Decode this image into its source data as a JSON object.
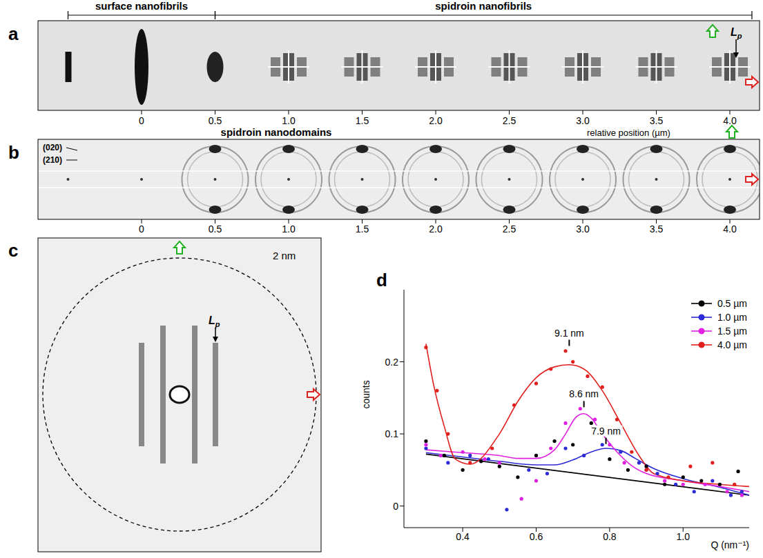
{
  "panels": {
    "a": {
      "letter": "a",
      "segments": [
        {
          "label": "surface nanofibrils",
          "from": -0.5,
          "to": 0.5
        },
        {
          "label": "spidroin nanofibrils",
          "from": 0.5,
          "to": 4.15
        }
      ],
      "frame_positions": [
        -0.5,
        0,
        0.5,
        1,
        1.5,
        2,
        2.5,
        3,
        3.5,
        4
      ],
      "xticks": [
        0,
        0.5,
        {
          "value": 1,
          "label": "1.0"
        },
        1.5,
        {
          "value": 2,
          "label": "2.0"
        },
        2.5,
        {
          "value": 3,
          "label": "3.0"
        },
        3.5,
        {
          "value": 4,
          "label": "4.0"
        }
      ],
      "xlabel": "relative position (µm)",
      "annotation": {
        "text": "L",
        "subscript": "p"
      }
    },
    "b": {
      "letter": "b",
      "title": "spidroin nanodomains",
      "reflections": [
        "(020)",
        "(210)"
      ],
      "frame_positions": [
        -0.5,
        0,
        0.5,
        1,
        1.5,
        2,
        2.5,
        3,
        3.5,
        4
      ],
      "xticks": [
        0,
        0.5,
        {
          "value": 1,
          "label": "1.0"
        },
        1.5,
        {
          "value": 2,
          "label": "2.0"
        },
        2.5,
        {
          "value": 3,
          "label": "3.0"
        },
        3.5,
        {
          "value": 4,
          "label": "4.0"
        }
      ]
    },
    "c": {
      "letter": "c",
      "ring_label": "2 nm",
      "annotation": {
        "text": "L",
        "subscript": "p"
      }
    },
    "d": {
      "letter": "d"
    }
  },
  "chart_data": {
    "type": "line",
    "xlabel": "Q (nm⁻¹)",
    "ylabel": "counts",
    "xlim": [
      0.24,
      1.18
    ],
    "xticks": [
      0.4,
      0.6,
      0.8,
      {
        "value": 1,
        "label": "1.0"
      }
    ],
    "ylim": [
      -0.03,
      0.3
    ],
    "yticks": [
      0,
      0.1,
      0.2
    ],
    "grid": false,
    "legend": "top-right",
    "marker": "circle",
    "series": [
      {
        "name": "0.5 µm",
        "color": "#000000",
        "x": [
          0.3,
          0.35,
          0.4,
          0.45,
          0.5,
          0.55,
          0.6,
          0.65,
          0.7,
          0.75,
          0.8,
          0.85,
          0.9,
          0.95,
          1.0,
          1.05,
          1.1,
          1.15
        ],
        "values": [
          0.09,
          0.07,
          0.05,
          0.062,
          0.055,
          0.04,
          0.07,
          0.09,
          0.085,
          0.115,
          0.065,
          0.05,
          0.055,
          0.03,
          0.04,
          0.035,
          0.03,
          0.048
        ],
        "fit_x": [
          0.3,
          1.18
        ],
        "fit_values": [
          0.072,
          0.015
        ]
      },
      {
        "name": "1.0 µm",
        "color": "#2b2bd6",
        "x": [
          0.3,
          0.36,
          0.42,
          0.47,
          0.52,
          0.58,
          0.63,
          0.68,
          0.73,
          0.78,
          0.83,
          0.88,
          0.93,
          0.98,
          1.03,
          1.08,
          1.13,
          1.16
        ],
        "values": [
          0.08,
          0.06,
          0.07,
          0.065,
          -0.005,
          0.05,
          0.045,
          0.08,
          0.07,
          0.085,
          0.075,
          0.06,
          0.045,
          0.03,
          0.02,
          0.035,
          0.015,
          0.02
        ],
        "fit_x": [
          0.3,
          0.4,
          0.5,
          0.6,
          0.65,
          0.7,
          0.75,
          0.79,
          0.83,
          0.87,
          0.92,
          1.0,
          1.1,
          1.18
        ],
        "fit_values": [
          0.074,
          0.068,
          0.062,
          0.057,
          0.057,
          0.064,
          0.075,
          0.08,
          0.077,
          0.066,
          0.052,
          0.038,
          0.026,
          0.015
        ]
      },
      {
        "name": "1.5 µm",
        "color": "#e020e0",
        "x": [
          0.3,
          0.34,
          0.4,
          0.46,
          0.5,
          0.56,
          0.6,
          0.64,
          0.68,
          0.72,
          0.76,
          0.8,
          0.84,
          0.9,
          0.95,
          1.0,
          1.06,
          1.12,
          1.16
        ],
        "values": [
          0.085,
          0.07,
          0.075,
          0.065,
          0.06,
          0.01,
          0.035,
          0.08,
          0.115,
          0.135,
          0.12,
          0.085,
          0.06,
          0.05,
          0.035,
          0.03,
          0.03,
          0.02,
          0.015
        ],
        "fit_x": [
          0.3,
          0.4,
          0.5,
          0.55,
          0.6,
          0.65,
          0.68,
          0.71,
          0.73,
          0.75,
          0.78,
          0.82,
          0.86,
          0.9,
          1.0,
          1.1,
          1.18
        ],
        "fit_values": [
          0.078,
          0.074,
          0.07,
          0.066,
          0.066,
          0.078,
          0.1,
          0.124,
          0.128,
          0.122,
          0.1,
          0.075,
          0.056,
          0.045,
          0.035,
          0.027,
          0.02
        ]
      },
      {
        "name": "4.0 µm",
        "color": "#e0201e",
        "x": [
          0.3,
          0.33,
          0.36,
          0.42,
          0.48,
          0.54,
          0.6,
          0.64,
          0.68,
          0.7,
          0.74,
          0.78,
          0.82,
          0.86,
          0.9,
          0.96,
          1.02,
          1.08,
          1.14
        ],
        "values": [
          0.22,
          0.16,
          0.1,
          0.06,
          0.08,
          0.14,
          0.17,
          0.19,
          0.215,
          0.2,
          0.18,
          0.165,
          0.12,
          0.075,
          0.05,
          0.04,
          0.055,
          0.06,
          0.03
        ],
        "fit_x": [
          0.3,
          0.32,
          0.35,
          0.38,
          0.42,
          0.5,
          0.55,
          0.6,
          0.65,
          0.69,
          0.73,
          0.78,
          0.83,
          0.88,
          0.92,
          1.0,
          1.1,
          1.18
        ],
        "fit_values": [
          0.225,
          0.17,
          0.11,
          0.065,
          0.058,
          0.1,
          0.145,
          0.178,
          0.193,
          0.196,
          0.19,
          0.16,
          0.115,
          0.07,
          0.045,
          0.035,
          0.03,
          0.027
        ]
      }
    ],
    "annotations": [
      {
        "text": "9.1 nm",
        "x": 0.69,
        "y": 0.222
      },
      {
        "text": "8.6 nm",
        "x": 0.73,
        "y": 0.137
      },
      {
        "text": "7.9 nm",
        "x": 0.79,
        "y": 0.086
      }
    ]
  }
}
